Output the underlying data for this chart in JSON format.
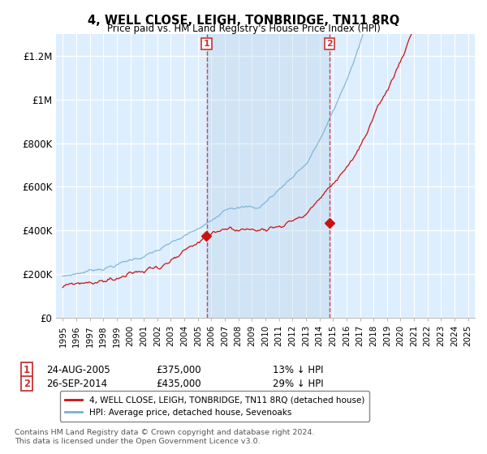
{
  "title": "4, WELL CLOSE, LEIGH, TONBRIDGE, TN11 8RQ",
  "subtitle": "Price paid vs. HM Land Registry's House Price Index (HPI)",
  "ylim": [
    0,
    1300000
  ],
  "yticks": [
    0,
    200000,
    400000,
    600000,
    800000,
    1000000,
    1200000
  ],
  "ytick_labels": [
    "£0",
    "£200K",
    "£400K",
    "£600K",
    "£800K",
    "£1M",
    "£1.2M"
  ],
  "bg_color": "#ddeeff",
  "grid_color": "#ffffff",
  "hpi_color": "#7ab0d4",
  "price_color": "#cc1111",
  "shade_color": "#c8dff0",
  "transaction1_year": 2005.65,
  "transaction1_price": 375000,
  "transaction2_year": 2014.73,
  "transaction2_price": 435000,
  "legend_line1": "4, WELL CLOSE, LEIGH, TONBRIDGE, TN11 8RQ (detached house)",
  "legend_line2": "HPI: Average price, detached house, Sevenoaks",
  "annotation1_date": "24-AUG-2005",
  "annotation1_price": "£375,000",
  "annotation1_rel": "13% ↓ HPI",
  "annotation2_date": "26-SEP-2014",
  "annotation2_price": "£435,000",
  "annotation2_rel": "29% ↓ HPI",
  "footer": "Contains HM Land Registry data © Crown copyright and database right 2024.\nThis data is licensed under the Open Government Licence v3.0."
}
